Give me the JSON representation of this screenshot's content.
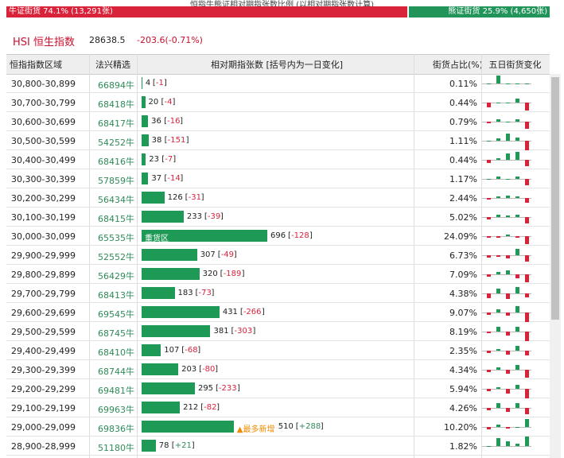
{
  "header": {
    "title": "恒指牛熊证相对期指张数比例 (以相对期指张数计算)",
    "bull": {
      "label": "牛证街货 74.1% (13,291张)",
      "share": 74.1
    },
    "bear": {
      "label": "熊证街货 25.9% (4,650张)",
      "share": 25.9
    }
  },
  "index": {
    "name": "HSI 恒生指数",
    "value": "28638.5",
    "change": "-203.6(-0.71%)"
  },
  "table": {
    "columns": [
      "恒指指数区域",
      "法兴精选",
      "相对期指张数 [括号内为一日变化]",
      "街货占比(%)",
      "五日街货变化"
    ],
    "rows": [
      {
        "range": "30,800-30,899",
        "code": "66894牛",
        "contracts": 4,
        "change": "-1",
        "share": "0.11%",
        "five_day": [
          0,
          10,
          0,
          0,
          0
        ]
      },
      {
        "range": "30,700-30,799",
        "code": "68418牛",
        "contracts": 20,
        "change": "-4",
        "share": "0.44%",
        "five_day": [
          -6,
          0,
          0,
          5,
          -10
        ]
      },
      {
        "range": "30,600-30,699",
        "code": "68417牛",
        "contracts": 36,
        "change": "-16",
        "share": "0.79%",
        "five_day": [
          -2,
          3,
          0,
          3,
          -9
        ]
      },
      {
        "range": "30,500-30,599",
        "code": "54252牛",
        "contracts": 38,
        "change": "-151",
        "share": "1.11%",
        "five_day": [
          0,
          3,
          9,
          4,
          -12
        ]
      },
      {
        "range": "30,400-30,499",
        "code": "68416牛",
        "contracts": 23,
        "change": "-7",
        "share": "0.44%",
        "five_day": [
          -4,
          2,
          8,
          10,
          -8
        ]
      },
      {
        "range": "30,300-30,399",
        "code": "57859牛",
        "contracts": 37,
        "change": "-14",
        "share": "1.17%",
        "five_day": [
          0,
          3,
          0,
          3,
          -8
        ]
      },
      {
        "range": "30,200-30,299",
        "code": "56434牛",
        "contracts": 126,
        "change": "-31",
        "share": "2.44%",
        "five_day": [
          -2,
          2,
          3,
          2,
          -6
        ]
      },
      {
        "range": "30,100-30,199",
        "code": "68415牛",
        "contracts": 233,
        "change": "-39",
        "share": "5.02%",
        "five_day": [
          -3,
          3,
          2,
          3,
          -8
        ]
      },
      {
        "range": "30,000-30,099",
        "code": "65535牛",
        "contracts": 696,
        "change": "-128",
        "share": "24.09%",
        "tag": "重货区",
        "five_day": [
          -2,
          -2,
          2,
          -2,
          -10
        ]
      },
      {
        "range": "29,900-29,999",
        "code": "52552牛",
        "contracts": 307,
        "change": "-49",
        "share": "6.73%",
        "five_day": [
          -3,
          -2,
          -4,
          8,
          -8
        ]
      },
      {
        "range": "29,800-29,899",
        "code": "56429牛",
        "contracts": 320,
        "change": "-189",
        "share": "7.09%",
        "five_day": [
          -3,
          3,
          5,
          -5,
          -10
        ]
      },
      {
        "range": "29,700-29,799",
        "code": "68413牛",
        "contracts": 183,
        "change": "-73",
        "share": "4.38%",
        "five_day": [
          -6,
          6,
          -7,
          8,
          -5
        ]
      },
      {
        "range": "29,600-29,699",
        "code": "69545牛",
        "contracts": 431,
        "change": "-266",
        "share": "9.07%",
        "five_day": [
          -3,
          4,
          -4,
          8,
          -12
        ]
      },
      {
        "range": "29,500-29,599",
        "code": "68745牛",
        "contracts": 381,
        "change": "-303",
        "share": "8.19%",
        "five_day": [
          -2,
          6,
          -5,
          6,
          -12
        ]
      },
      {
        "range": "29,400-29,499",
        "code": "68410牛",
        "contracts": 107,
        "change": "-68",
        "share": "2.35%",
        "five_day": [
          -3,
          2,
          -5,
          6,
          -6
        ]
      },
      {
        "range": "29,300-29,399",
        "code": "68744牛",
        "contracts": 203,
        "change": "-80",
        "share": "4.34%",
        "five_day": [
          -3,
          3,
          -5,
          6,
          -10
        ]
      },
      {
        "range": "29,200-29,299",
        "code": "69481牛",
        "contracts": 295,
        "change": "-233",
        "share": "5.94%",
        "five_day": [
          -3,
          2,
          -6,
          5,
          -12
        ]
      },
      {
        "range": "29,100-29,199",
        "code": "69963牛",
        "contracts": 212,
        "change": "-82",
        "share": "4.26%",
        "five_day": [
          -3,
          6,
          -5,
          6,
          -8
        ]
      },
      {
        "range": "29,000-29,099",
        "code": "69836牛",
        "contracts": 510,
        "change": "+288",
        "share": "10.20%",
        "tag": "▲最多新增",
        "five_day": [
          -3,
          3,
          -2,
          0,
          10
        ]
      },
      {
        "range": "28,900-28,999",
        "code": "51180牛",
        "contracts": 78,
        "change": "+21",
        "share": "1.82%",
        "five_day": [
          0,
          10,
          6,
          3,
          12
        ]
      }
    ]
  }
}
